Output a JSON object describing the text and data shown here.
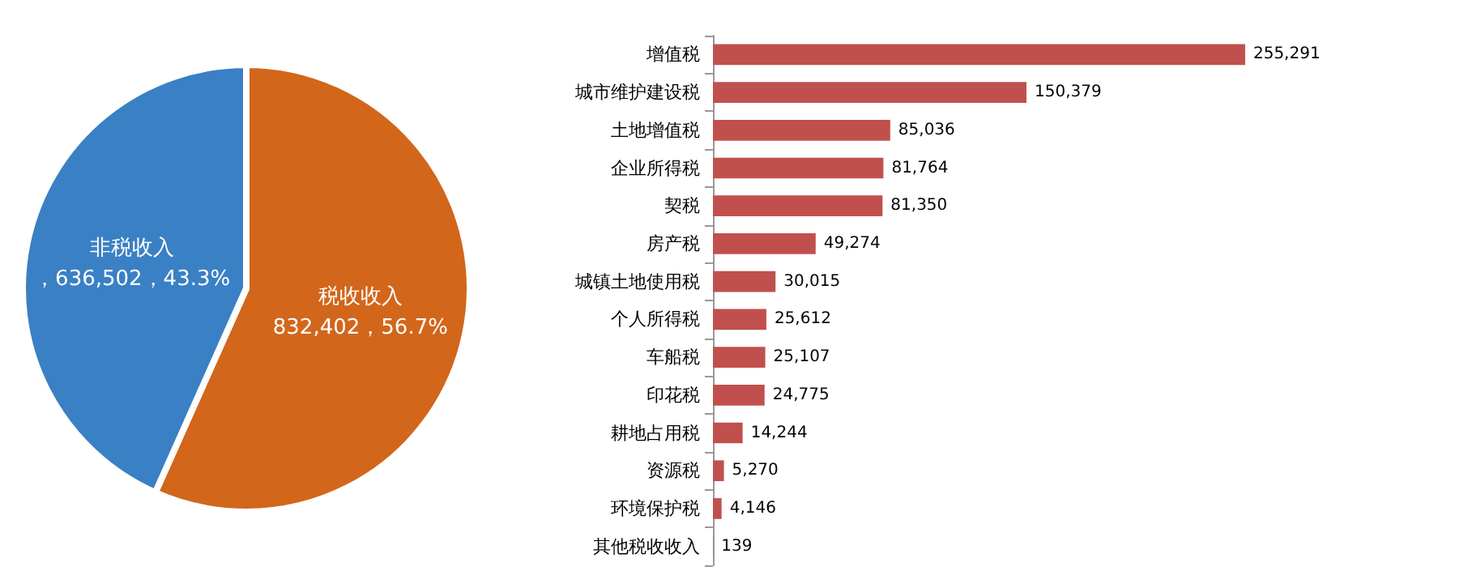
{
  "chart_data": [
    {
      "type": "pie",
      "categories": [
        "税收收入",
        "非税收入"
      ],
      "values": [
        832402,
        636502
      ],
      "colors": [
        "#d2661b",
        "#3a80c4"
      ],
      "value_labels": [
        "832,402，56.7%",
        "，636,502，43.3%"
      ],
      "legend": false
    },
    {
      "type": "bar",
      "orientation": "horizontal",
      "categories": [
        "增值税",
        "城市维护建设税",
        "土地增值税",
        "企业所得税",
        "契税",
        "房产税",
        "城镇土地使用税",
        "个人所得税",
        "车船税",
        "印花税",
        "耕地占用税",
        "资源税",
        "环境保护税",
        "其他税收收入"
      ],
      "values": [
        255291,
        150379,
        85036,
        81764,
        81350,
        49274,
        30015,
        25612,
        25107,
        24775,
        14244,
        5270,
        4146,
        139
      ],
      "value_labels": [
        "255,291",
        "150,379",
        "85,036",
        "81,764",
        "81,350",
        "49,274",
        "30,015",
        "25,612",
        "25,107",
        "24,775",
        "14,244",
        "5,270",
        "4,146",
        "139"
      ],
      "color": "#c0504d",
      "tick_labels": "y",
      "grid": false,
      "legend": false
    }
  ]
}
